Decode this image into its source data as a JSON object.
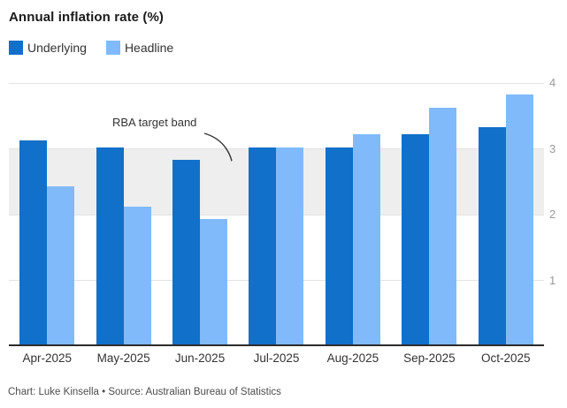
{
  "title": "Annual inflation rate (%)",
  "footer": "Chart: Luke Kinsella • Source: Australian Bureau of Statistics",
  "colors": {
    "underlying": "#1170C9",
    "headline": "#80BAFB",
    "band": "#EEEEEE",
    "gridline": "#E3E3E3",
    "axis_baseline": "#2B2B2B",
    "tick_label": "#999999"
  },
  "chart_data": {
    "type": "bar",
    "title": "Annual inflation rate (%)",
    "categories": [
      "Apr-2025",
      "May-2025",
      "Jun-2025",
      "Jul-2025",
      "Aug-2025",
      "Sep-2025",
      "Oct-2025"
    ],
    "series": [
      {
        "name": "Underlying",
        "color": "#1170C9",
        "values": [
          3.1,
          3.0,
          2.8,
          3.0,
          3.0,
          3.2,
          3.3
        ]
      },
      {
        "name": "Headline",
        "color": "#80BAFB",
        "values": [
          2.4,
          2.1,
          1.9,
          3.0,
          3.2,
          3.6,
          3.8
        ]
      }
    ],
    "xlabel": "",
    "ylabel": "",
    "ylim": [
      0,
      4
    ],
    "yticks": [
      1,
      2,
      3,
      4
    ],
    "grid": "horizontal",
    "legend_position": "top-left",
    "band": {
      "label": "RBA target band",
      "from": 2,
      "to": 3,
      "color": "#EEEEEE"
    }
  }
}
